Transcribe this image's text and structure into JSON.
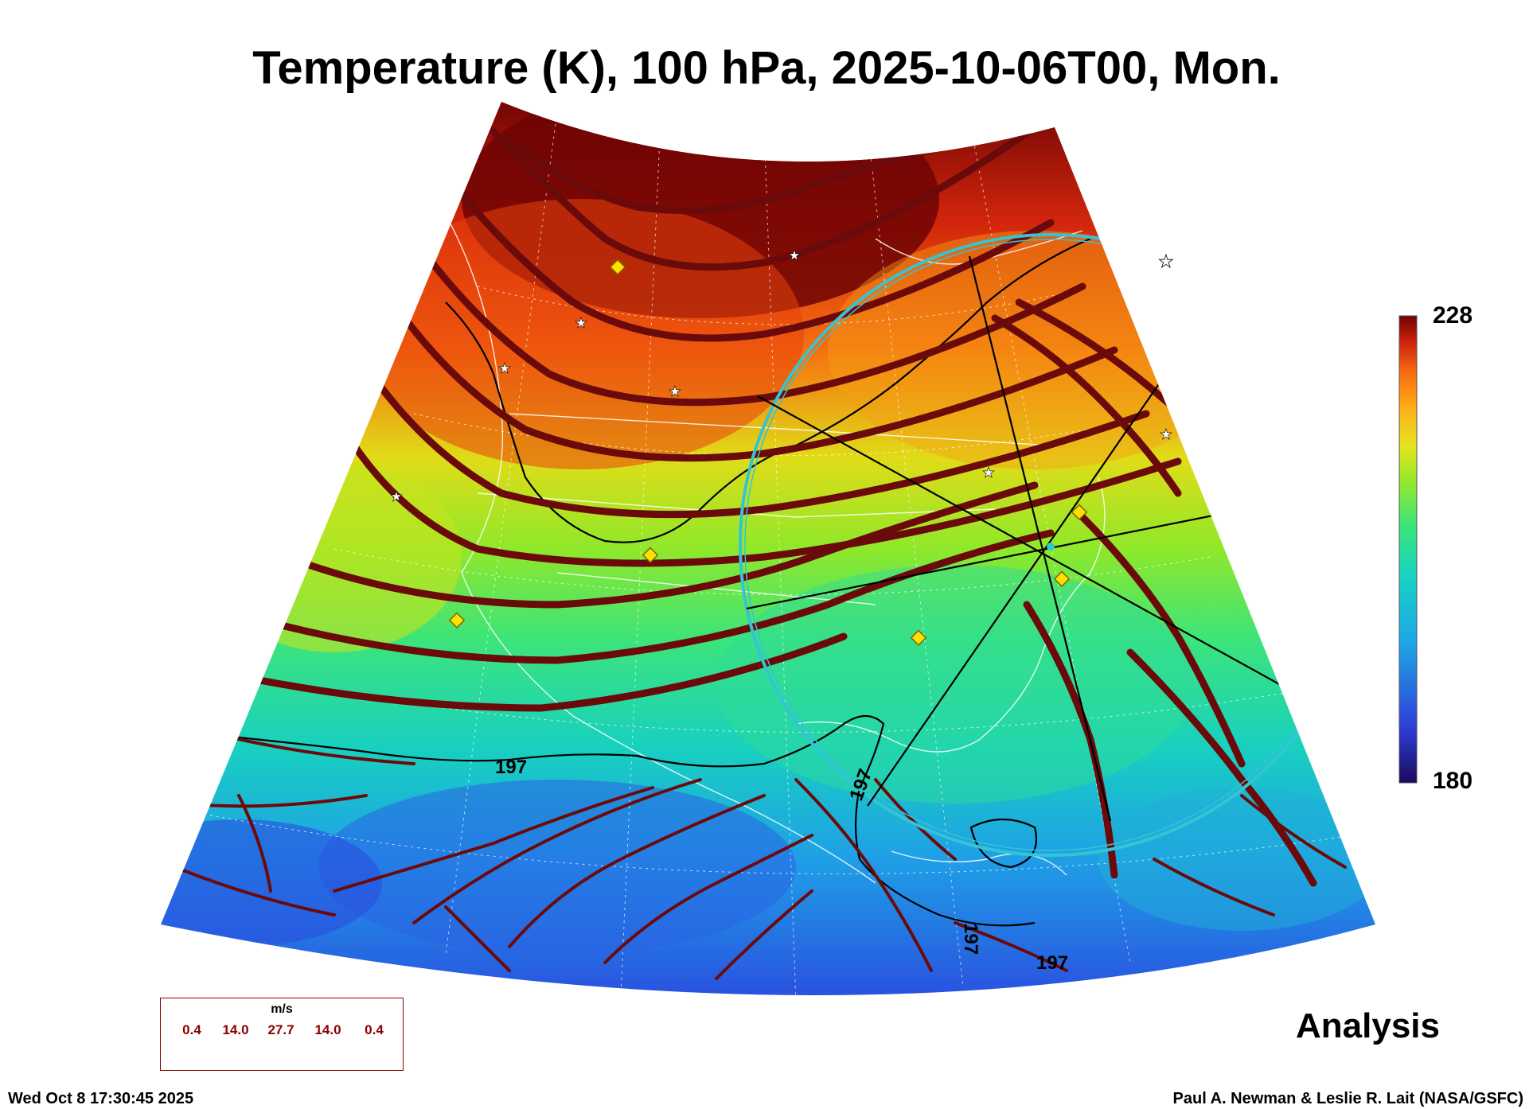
{
  "title": "Temperature (K), 100 hPa, 2025-10-06T00, Mon.",
  "colorbar": {
    "max_label": "228",
    "min_label": "180",
    "colors": [
      "#1a0a5e",
      "#2e3fd8",
      "#1fa6e8",
      "#18d4c0",
      "#3ce47a",
      "#9ae82a",
      "#e4e41c",
      "#ffb01a",
      "#f66a10",
      "#d2260c",
      "#6e0404"
    ]
  },
  "contour_labels": [
    "197",
    "197",
    "197",
    "197"
  ],
  "wind_legend": {
    "unit": "m/s",
    "labels": [
      "0.4",
      "14.0",
      "27.7",
      "14.0",
      "0.4"
    ]
  },
  "analysis_label": "Analysis",
  "timestamp": "Wed Oct  8 17:30:45 2025",
  "credit": "Paul A. Newman & Leslie R. Lait (NASA/GSFC)",
  "colors": {
    "streamline": "#6b0a0a",
    "ring": "#35c4d4",
    "marker_fill": "#ffe000"
  }
}
